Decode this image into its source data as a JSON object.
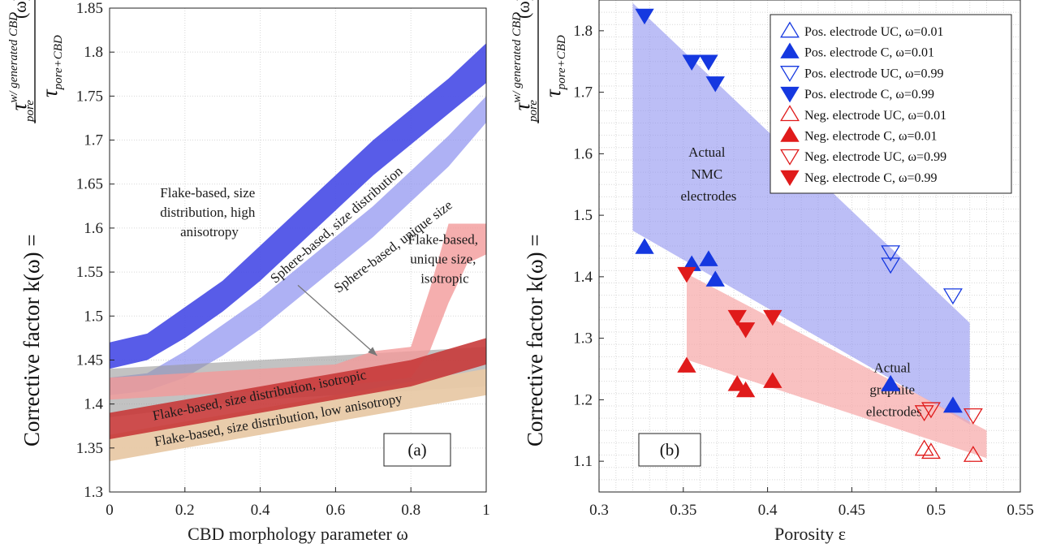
{
  "chart_data": [
    {
      "panel": "(a)",
      "type": "area",
      "xlabel": "CBD morphology parameter ω",
      "ylabel_prefix": "Corrective factor k(ω) =",
      "ylabel_num_base": "τ",
      "ylabel_num_sub": "pore",
      "ylabel_num_sup": "w/ generated CBD",
      "ylabel_num_arg": "(ω)",
      "ylabel_den_base": "τ",
      "ylabel_den_sub": "pore+CBD",
      "xlim": [
        0,
        1
      ],
      "ylim": [
        1.3,
        1.85
      ],
      "xticks": [
        0,
        0.2,
        0.4,
        0.6,
        0.8,
        1
      ],
      "xtick_labels": [
        "0",
        "0.2",
        "0.4",
        "0.6",
        "0.8",
        "1"
      ],
      "yticks": [
        1.3,
        1.35,
        1.4,
        1.45,
        1.5,
        1.55,
        1.6,
        1.65,
        1.7,
        1.75,
        1.8,
        1.85
      ],
      "ytick_labels": [
        "1.3",
        "1.35",
        "1.4",
        "1.45",
        "1.5",
        "1.55",
        "1.6",
        "1.65",
        "1.7",
        "1.75",
        "1.8",
        "1.85"
      ],
      "bands": [
        {
          "name": "Sphere-based, size distribution",
          "color": "#4a4ee6",
          "opacity": 0.92,
          "x": [
            0,
            0.1,
            0.2,
            0.3,
            0.4,
            0.5,
            0.6,
            0.7,
            0.8,
            0.9,
            1
          ],
          "upper": [
            1.47,
            1.48,
            1.51,
            1.54,
            1.58,
            1.62,
            1.66,
            1.7,
            1.735,
            1.77,
            1.81
          ],
          "lower": [
            1.44,
            1.45,
            1.475,
            1.505,
            1.54,
            1.58,
            1.62,
            1.66,
            1.695,
            1.73,
            1.765
          ]
        },
        {
          "name": "Sphere-based, unique size",
          "color": "#8f93f0",
          "opacity": 0.72,
          "x": [
            0,
            0.1,
            0.2,
            0.3,
            0.4,
            0.5,
            0.6,
            0.7,
            0.8,
            0.9,
            1
          ],
          "upper": [
            1.43,
            1.435,
            1.46,
            1.49,
            1.52,
            1.555,
            1.59,
            1.625,
            1.665,
            1.705,
            1.75
          ],
          "lower": [
            1.41,
            1.415,
            1.43,
            1.455,
            1.485,
            1.52,
            1.555,
            1.59,
            1.63,
            1.67,
            1.72
          ]
        },
        {
          "name": "Flake-based, size distribution, high anisotropy",
          "color": "#9a9a9a",
          "opacity": 0.6,
          "x": [
            0,
            0.2,
            0.4,
            0.6,
            0.8,
            1
          ],
          "upper": [
            1.44,
            1.445,
            1.45,
            1.455,
            1.46,
            1.465
          ],
          "lower": [
            1.385,
            1.395,
            1.405,
            1.41,
            1.415,
            1.42
          ]
        },
        {
          "name": "Flake-based, unique size, isotropic",
          "color": "#f39a9a",
          "opacity": 0.8,
          "x": [
            0,
            0.2,
            0.4,
            0.6,
            0.7,
            0.8,
            0.85,
            0.9,
            0.95,
            1
          ],
          "upper": [
            1.43,
            1.435,
            1.44,
            1.445,
            1.46,
            1.465,
            1.53,
            1.605,
            1.605,
            1.605
          ],
          "lower": [
            1.405,
            1.41,
            1.415,
            1.42,
            1.425,
            1.43,
            1.46,
            1.515,
            1.56,
            1.57
          ]
        },
        {
          "name": "Flake-based, size distribution, low anisotropy",
          "color": "#e8c9a6",
          "opacity": 0.95,
          "x": [
            0,
            0.2,
            0.4,
            0.6,
            0.8,
            1
          ],
          "upper": [
            1.365,
            1.38,
            1.395,
            1.41,
            1.425,
            1.44
          ],
          "lower": [
            1.335,
            1.35,
            1.365,
            1.38,
            1.395,
            1.41
          ]
        },
        {
          "name": "Flake-based, size distribution, isotropic",
          "color": "#c83a3a",
          "opacity": 0.9,
          "x": [
            0,
            0.2,
            0.4,
            0.6,
            0.8,
            1
          ],
          "upper": [
            1.39,
            1.405,
            1.42,
            1.435,
            1.45,
            1.475
          ],
          "lower": [
            1.36,
            1.375,
            1.39,
            1.405,
            1.42,
            1.445
          ]
        }
      ],
      "annotations": [
        {
          "id": "sphere-size-distribution",
          "text": "Sphere-based, size distribution",
          "x": 0.61,
          "y": 1.6,
          "angle": -41
        },
        {
          "id": "sphere-unique-size",
          "text": "Sphere-based, unique size",
          "x": 0.76,
          "y": 1.575,
          "angle": -37
        },
        {
          "id": "flake-high-anisotropy",
          "lines": [
            "Flake-based, size",
            "distribution, high",
            "anisotropy"
          ],
          "x": 0.265,
          "y": 1.635
        },
        {
          "id": "flake-unique-isotropic",
          "lines": [
            "Flake-based,",
            "unique size,",
            "isotropic"
          ],
          "x": 0.89,
          "y": 1.582
        },
        {
          "id": "flake-size-isotropic",
          "text": "Flake-based, size distribution, isotropic",
          "x": 0.4,
          "y": 1.405,
          "angle": -11
        },
        {
          "id": "flake-size-low-aniso",
          "text": "Flake-based, size distribution, low anisotropy",
          "x": 0.45,
          "y": 1.377,
          "angle": -10
        }
      ],
      "arrow": {
        "from": [
          0.5,
          1.535
        ],
        "to": [
          0.71,
          1.455
        ]
      },
      "panel_label": "(a)"
    },
    {
      "panel": "(b)",
      "type": "scatter",
      "xlabel": "Porosity ε",
      "ylabel_prefix": "Corrective factor k(ω) =",
      "ylabel_num_base": "τ",
      "ylabel_num_sub": "pore",
      "ylabel_num_sup": "w/ generated CBD",
      "ylabel_num_arg": "(ω)",
      "ylabel_den_base": "τ",
      "ylabel_den_sub": "pore+CBD",
      "xlim": [
        0.3,
        0.55
      ],
      "ylim": [
        1.05,
        1.85
      ],
      "xticks": [
        0.3,
        0.35,
        0.4,
        0.45,
        0.5,
        0.55
      ],
      "xtick_labels": [
        "0.3",
        "0.35",
        "0.4",
        "0.45",
        "0.5",
        "0.55"
      ],
      "yticks": [
        1.1,
        1.2,
        1.3,
        1.4,
        1.5,
        1.6,
        1.7,
        1.8
      ],
      "ytick_labels": [
        "1.1",
        "1.2",
        "1.3",
        "1.4",
        "1.5",
        "1.6",
        "1.7",
        "1.8"
      ],
      "regions": [
        {
          "name": "Actual NMC electrodes",
          "lines": [
            "Actual",
            "NMC",
            "electrodes"
          ],
          "color": "#8f93f0",
          "opacity": 0.6,
          "polygon": [
            [
              0.32,
              1.845
            ],
            [
              0.52,
              1.325
            ],
            [
              0.52,
              1.16
            ],
            [
              0.32,
              1.475
            ]
          ],
          "label_x": 0.365,
          "label_y": 1.595
        },
        {
          "name": "Actual graphite electrodes",
          "lines": [
            "Actual",
            "graphite",
            "electrodes"
          ],
          "color": "#f7a9a9",
          "opacity": 0.72,
          "polygon": [
            [
              0.352,
              1.405
            ],
            [
              0.53,
              1.15
            ],
            [
              0.53,
              1.105
            ],
            [
              0.352,
              1.265
            ]
          ],
          "label_x": 0.475,
          "label_y": 1.245
        }
      ],
      "series": [
        {
          "name": "Pos. electrode UC, ω=0.01",
          "color": "#1538e0",
          "marker": "triangle-up",
          "filled": false,
          "points": [
            [
              0.473,
              1.225
            ],
            [
              0.51,
              1.19
            ]
          ]
        },
        {
          "name": "Pos. electrode C, ω=0.01",
          "color": "#1538e0",
          "marker": "triangle-up",
          "filled": true,
          "points": [
            [
              0.327,
              1.448
            ],
            [
              0.355,
              1.42
            ],
            [
              0.365,
              1.428
            ],
            [
              0.369,
              1.395
            ],
            [
              0.473,
              1.225
            ],
            [
              0.51,
              1.19
            ]
          ]
        },
        {
          "name": "Pos. electrode UC, ω=0.99",
          "color": "#1538e0",
          "marker": "triangle-down",
          "filled": false,
          "points": [
            [
              0.473,
              1.44
            ],
            [
              0.473,
              1.42
            ],
            [
              0.51,
              1.37
            ]
          ]
        },
        {
          "name": "Pos. electrode C, ω=0.99",
          "color": "#1538e0",
          "marker": "triangle-down",
          "filled": true,
          "points": [
            [
              0.327,
              1.825
            ],
            [
              0.355,
              1.75
            ],
            [
              0.365,
              1.75
            ],
            [
              0.369,
              1.715
            ]
          ]
        },
        {
          "name": "Neg. electrode UC, ω=0.01",
          "color": "#e01b1b",
          "marker": "triangle-up",
          "filled": false,
          "points": [
            [
              0.493,
              1.12
            ],
            [
              0.497,
              1.115
            ],
            [
              0.522,
              1.11
            ]
          ]
        },
        {
          "name": "Neg. electrode C, ω=0.01",
          "color": "#e01b1b",
          "marker": "triangle-up",
          "filled": true,
          "points": [
            [
              0.352,
              1.255
            ],
            [
              0.382,
              1.225
            ],
            [
              0.387,
              1.215
            ],
            [
              0.403,
              1.23
            ]
          ]
        },
        {
          "name": "Neg. electrode UC, ω=0.99",
          "color": "#e01b1b",
          "marker": "triangle-down",
          "filled": false,
          "points": [
            [
              0.493,
              1.18
            ],
            [
              0.497,
              1.185
            ],
            [
              0.522,
              1.175
            ]
          ]
        },
        {
          "name": "Neg. electrode C, ω=0.99",
          "color": "#e01b1b",
          "marker": "triangle-down",
          "filled": true,
          "points": [
            [
              0.352,
              1.405
            ],
            [
              0.382,
              1.335
            ],
            [
              0.387,
              1.315
            ],
            [
              0.403,
              1.335
            ]
          ]
        }
      ],
      "legend_placement": "top-right",
      "panel_label": "(b)"
    }
  ]
}
